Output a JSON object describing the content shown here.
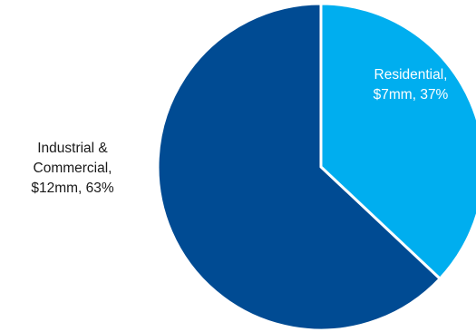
{
  "chart_data": {
    "type": "pie",
    "title": "",
    "slices": [
      {
        "label": "Residential",
        "value": 7,
        "value_label": "$7mm",
        "percent": 37,
        "color": "#00AEEF",
        "label_color": "#ffffff",
        "label_lines": [
          "Residential,",
          "$7mm, 37%"
        ]
      },
      {
        "label": "Industrial & Commercial",
        "value": 12,
        "value_label": "$12mm",
        "percent": 63,
        "color": "#004B93",
        "label_color": "#1a1a1a",
        "label_lines": [
          "Industrial &",
          "Commercial,",
          "$12mm, 63%"
        ]
      }
    ],
    "legend": "none"
  }
}
